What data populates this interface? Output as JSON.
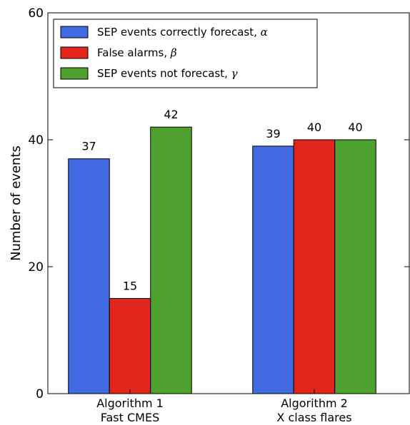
{
  "chart_data": {
    "type": "bar",
    "title": "",
    "xlabel": "",
    "ylabel": "Number of events",
    "ylim": [
      0,
      60
    ],
    "yticks": [
      0,
      20,
      40,
      60
    ],
    "grid": false,
    "legend_position": "top-left",
    "categories": [
      {
        "line1": "Algorithm 1",
        "line2": "Fast CMES"
      },
      {
        "line1": "Algorithm 2",
        "line2": "X class flares"
      }
    ],
    "series": [
      {
        "name": "SEP events correctly forecast, ",
        "symbol": "α",
        "color": "#4169e1",
        "values": [
          37,
          39
        ]
      },
      {
        "name": "False alarms, ",
        "symbol": "β",
        "color": "#e3261b",
        "values": [
          15,
          40
        ]
      },
      {
        "name": "SEP events not forecast, ",
        "symbol": "γ",
        "color": "#4ea12f",
        "values": [
          42,
          40
        ]
      }
    ]
  }
}
